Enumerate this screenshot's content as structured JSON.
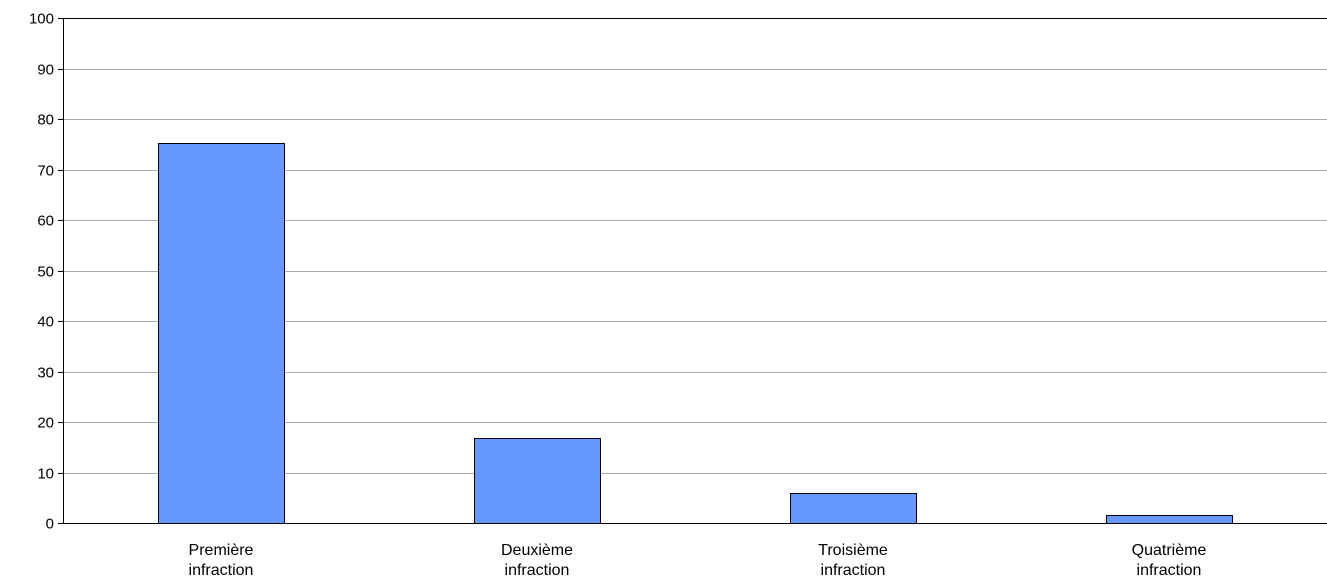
{
  "chart_data": {
    "type": "bar",
    "title": "",
    "xlabel": "",
    "ylabel": "",
    "categories": [
      [
        "Première",
        "infraction"
      ],
      [
        "Deuxième",
        "infraction"
      ],
      [
        "Troisième",
        "infraction"
      ],
      [
        "Quatrième",
        "infraction"
      ]
    ],
    "values": [
      75.3,
      16.8,
      6.0,
      1.6
    ],
    "ylim": [
      0,
      100
    ],
    "yticks": [
      0,
      10,
      20,
      30,
      40,
      50,
      60,
      70,
      80,
      90,
      100
    ],
    "grid": true,
    "legend": "none",
    "colors": {
      "bar": "#6699ff",
      "bar_stroke": "#000000",
      "grid": "#aaaaaa",
      "axis": "#000000"
    }
  }
}
